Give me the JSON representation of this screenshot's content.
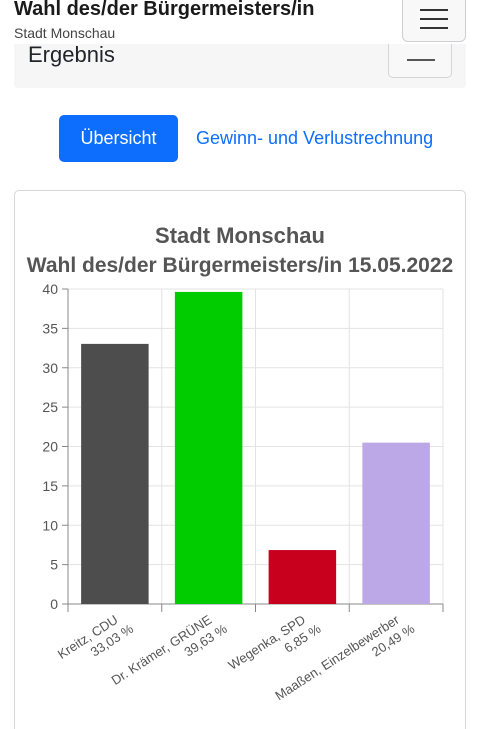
{
  "header": {
    "title": "Wahl des/der Bürgermeisters/in",
    "subtitle": "Stadt Monschau"
  },
  "section": {
    "title": "Ergebnis"
  },
  "tabs": [
    {
      "label": "Übersicht",
      "active": true
    },
    {
      "label": "Gewinn- und Verlustrechnung",
      "active": false
    }
  ],
  "colors": {
    "accent": "#0d6efd"
  },
  "icons": {
    "menu": "hamburger-menu-icon"
  },
  "chart_data": {
    "type": "bar",
    "title": "Stadt Monschau",
    "subtitle": "Wahl des/der Bürgermeisters/in 15.05.2022",
    "xlabel": "",
    "ylabel": "",
    "ylim": [
      0,
      40
    ],
    "yticks": [
      0,
      5,
      10,
      15,
      20,
      25,
      30,
      35,
      40
    ],
    "grid": true,
    "legend": "none",
    "categories": [
      {
        "name": "Kreitz, CDU",
        "pct_label": "33,03 %"
      },
      {
        "name": "Dr. Krämer, GRÜNE",
        "pct_label": "39,63 %"
      },
      {
        "name": "Wegenka, SPD",
        "pct_label": "6,85 %"
      },
      {
        "name": "Maaßen, Einzelbewerber",
        "pct_label": "20,49 %"
      }
    ],
    "values": [
      33.03,
      39.63,
      6.85,
      20.49
    ],
    "colors": [
      "#4d4d4d",
      "#00cc00",
      "#c8001e",
      "#bca8e6"
    ]
  }
}
